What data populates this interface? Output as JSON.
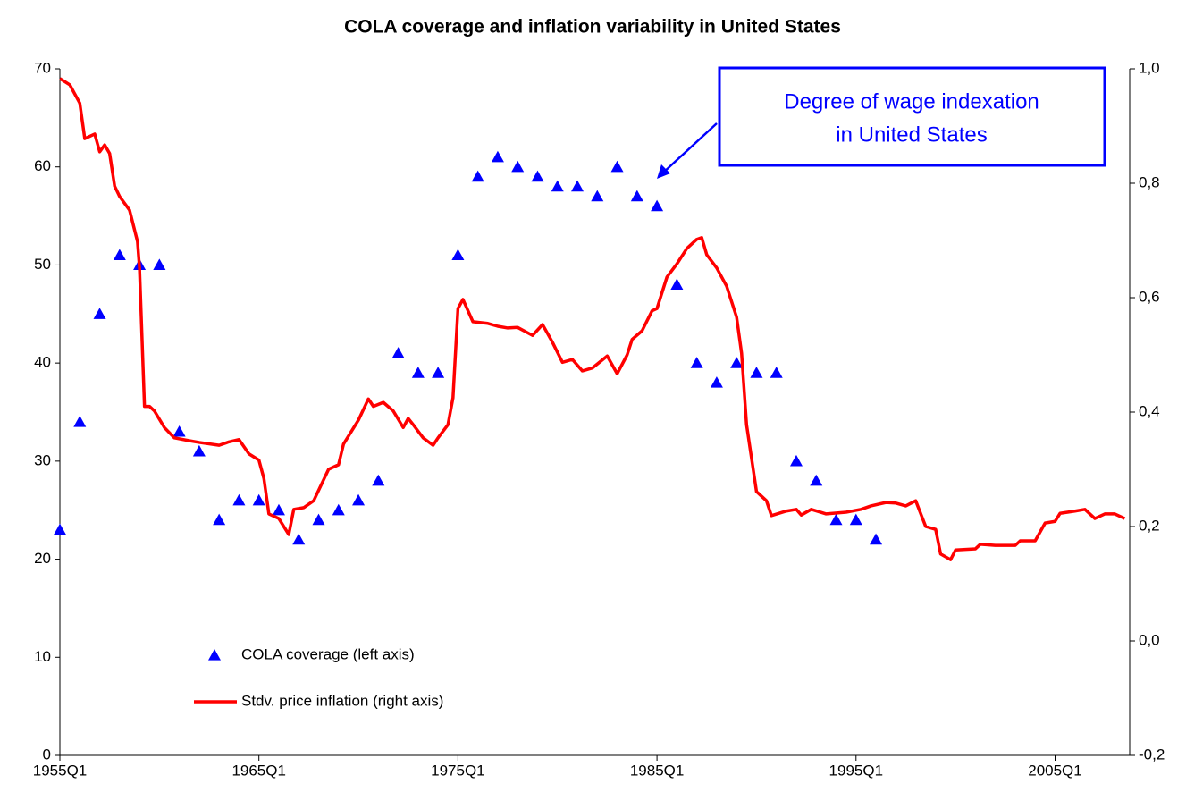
{
  "chart_data": {
    "type": "line",
    "title": "COLA coverage and inflation variability in United States",
    "annotation": [
      "Degree of wage indexation",
      "in United States"
    ],
    "xlim": [
      1955,
      2008.75
    ],
    "xticks": [
      {
        "value": 1955,
        "label": "1955Q1"
      },
      {
        "value": 1965,
        "label": "1965Q1"
      },
      {
        "value": 1975,
        "label": "1975Q1"
      },
      {
        "value": 1985,
        "label": "1985Q1"
      },
      {
        "value": 1995,
        "label": "1995Q1"
      },
      {
        "value": 2005,
        "label": "2005Q1"
      }
    ],
    "ylim": [
      0,
      70
    ],
    "yticks": [
      0,
      10,
      20,
      30,
      40,
      50,
      60,
      70
    ],
    "y2lim": [
      -0.2,
      1.0
    ],
    "y2ticks": [
      {
        "value": -0.2,
        "label": "-0,2"
      },
      {
        "value": 0,
        "label": "0,0"
      },
      {
        "value": 0.2,
        "label": "0,2"
      },
      {
        "value": 0.4,
        "label": "0,4"
      },
      {
        "value": 0.6,
        "label": "0,6"
      },
      {
        "value": 0.8,
        "label": "0,8"
      },
      {
        "value": 1.0,
        "label": "1,0"
      }
    ],
    "series": [
      {
        "name": "COLA coverage (left axis)",
        "type": "scatter",
        "color": "#0000ff",
        "axis": "y",
        "x": [
          1955,
          1956,
          1957,
          1958,
          1959,
          1960,
          1961,
          1962,
          1963,
          1964,
          1965,
          1966,
          1967,
          1968,
          1969,
          1970,
          1971,
          1972,
          1973,
          1974,
          1975,
          1976,
          1977,
          1978,
          1979,
          1980,
          1981,
          1982,
          1983,
          1984,
          1985,
          1986,
          1987,
          1988,
          1989,
          1990,
          1991,
          1992,
          1993,
          1994,
          1995,
          1996
        ],
        "values": [
          23,
          34,
          45,
          51,
          50,
          50,
          33,
          31,
          24,
          26,
          26,
          25,
          22,
          24,
          25,
          26,
          28,
          41,
          39,
          39,
          51,
          59,
          61,
          60,
          59,
          58,
          58,
          57,
          60,
          57,
          56,
          48,
          40,
          38,
          40,
          39,
          39,
          30,
          28,
          24,
          24,
          22
        ]
      },
      {
        "name": "Stdv. price inflation (right axis)",
        "type": "line",
        "color": "#ff0000",
        "axis": "y2",
        "x": [
          1955,
          1955.5,
          1956,
          1956.25,
          1956.75,
          1957,
          1957.25,
          1957.5,
          1957.75,
          1958,
          1958.5,
          1958.9,
          1959,
          1959.25,
          1959.5,
          1959.75,
          1960.25,
          1960.75,
          1961.5,
          1962,
          1963,
          1963.5,
          1964,
          1964.5,
          1965,
          1965.25,
          1965.5,
          1966,
          1966.5,
          1966.75,
          1967.25,
          1967.75,
          1968.5,
          1969,
          1969.25,
          1970,
          1970.5,
          1970.75,
          1971.25,
          1971.75,
          1972.25,
          1972.5,
          1972.75,
          1973.25,
          1973.75,
          1974,
          1974.5,
          1974.75,
          1975,
          1975.25,
          1975.75,
          1976.5,
          1977,
          1977.5,
          1978,
          1978.75,
          1979.25,
          1979.75,
          1980.25,
          1980.75,
          1981.25,
          1981.75,
          1982.5,
          1983,
          1983.5,
          1983.75,
          1984.25,
          1984.75,
          1985,
          1985.5,
          1986,
          1986.5,
          1987,
          1987.25,
          1987.5,
          1988,
          1988.5,
          1989,
          1989.25,
          1989.5,
          1990,
          1990.5,
          1990.75,
          1991.5,
          1992,
          1992.25,
          1992.75,
          1993.5,
          1994.5,
          1995.25,
          1995.75,
          1996.5,
          1997,
          1997.5,
          1998,
          1998.5,
          1999,
          1999.25,
          1999.75,
          2000,
          2001,
          2001.25,
          2002,
          2003,
          2003.25,
          2004,
          2004.5,
          2005,
          2005.25,
          2006,
          2006.5,
          2007,
          2007.5,
          2008,
          2008.5
        ],
        "values": [
          0.983,
          0.972,
          0.94,
          0.878,
          0.886,
          0.855,
          0.867,
          0.852,
          0.795,
          0.777,
          0.753,
          0.698,
          0.652,
          0.41,
          0.41,
          0.402,
          0.373,
          0.355,
          0.35,
          0.347,
          0.342,
          0.348,
          0.352,
          0.327,
          0.316,
          0.284,
          0.222,
          0.214,
          0.186,
          0.23,
          0.233,
          0.245,
          0.3,
          0.308,
          0.344,
          0.386,
          0.423,
          0.41,
          0.417,
          0.402,
          0.373,
          0.389,
          0.378,
          0.355,
          0.342,
          0.355,
          0.378,
          0.425,
          0.581,
          0.597,
          0.558,
          0.555,
          0.55,
          0.547,
          0.548,
          0.534,
          0.553,
          0.522,
          0.487,
          0.492,
          0.472,
          0.477,
          0.498,
          0.467,
          0.5,
          0.527,
          0.542,
          0.577,
          0.581,
          0.636,
          0.659,
          0.686,
          0.702,
          0.705,
          0.675,
          0.652,
          0.62,
          0.566,
          0.503,
          0.378,
          0.261,
          0.245,
          0.219,
          0.227,
          0.23,
          0.22,
          0.23,
          0.222,
          0.225,
          0.23,
          0.236,
          0.242,
          0.241,
          0.236,
          0.245,
          0.2,
          0.195,
          0.152,
          0.142,
          0.159,
          0.161,
          0.169,
          0.167,
          0.167,
          0.175,
          0.175,
          0.206,
          0.209,
          0.223,
          0.227,
          0.23,
          0.214,
          0.222,
          0.222,
          0.214
        ]
      }
    ]
  }
}
